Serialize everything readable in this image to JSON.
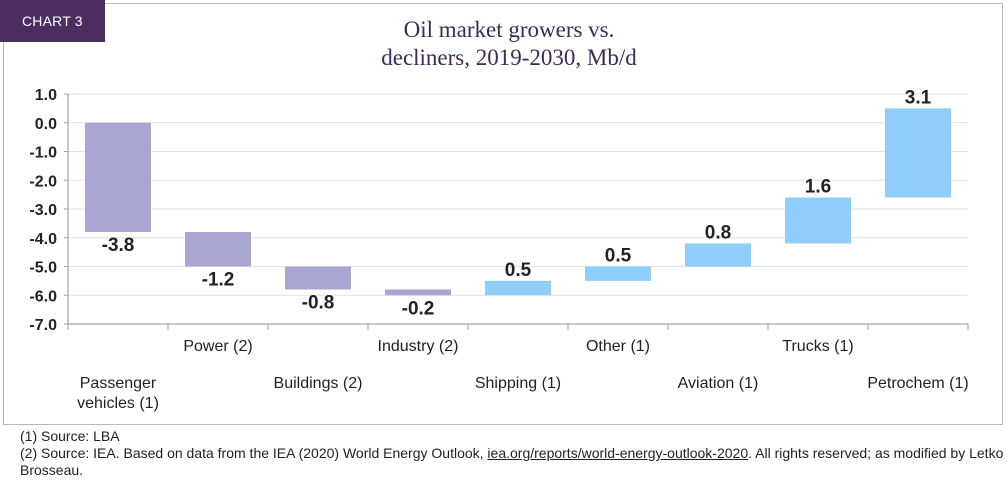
{
  "chart_tag": "CHART 3",
  "colors": {
    "tag_background": "#4b2e61",
    "title": "#3e2a56",
    "decrease": "#a9a5d3",
    "increase": "#8fcdfa"
  },
  "chart_data": {
    "type": "bar",
    "waterfall": true,
    "title": "Oil market growers vs. decliners, 2019-2030, Mb/d",
    "categories": [
      "Passenger vehicles (1)",
      "Power (2)",
      "Buildings (2)",
      "Industry (2)",
      "Shipping (1)",
      "Other (1)",
      "Aviation (1)",
      "Trucks (1)",
      "Petrochem (1)"
    ],
    "values": [
      -3.8,
      -1.2,
      -0.8,
      -0.2,
      0.5,
      0.5,
      0.8,
      1.6,
      3.1
    ],
    "ylim": [
      -7,
      1
    ],
    "ytick_labels": [
      "1.0",
      "0.0",
      "-1.0",
      "-2.0",
      "-3.0",
      "-4.0",
      "-5.0",
      "-6.0",
      "-7.0"
    ],
    "grid": true
  },
  "footnotes": {
    "note_1": "(1) Source: LBA",
    "note_2_text": "(2) Source: IEA. Based on data from the IEA (2020) World Energy Outlook, ",
    "note_2_link": "iea.org/reports/world-energy-outlook-2020",
    "note_2_rights": ". All rights reserved; as modified by Letko Brosseau."
  }
}
